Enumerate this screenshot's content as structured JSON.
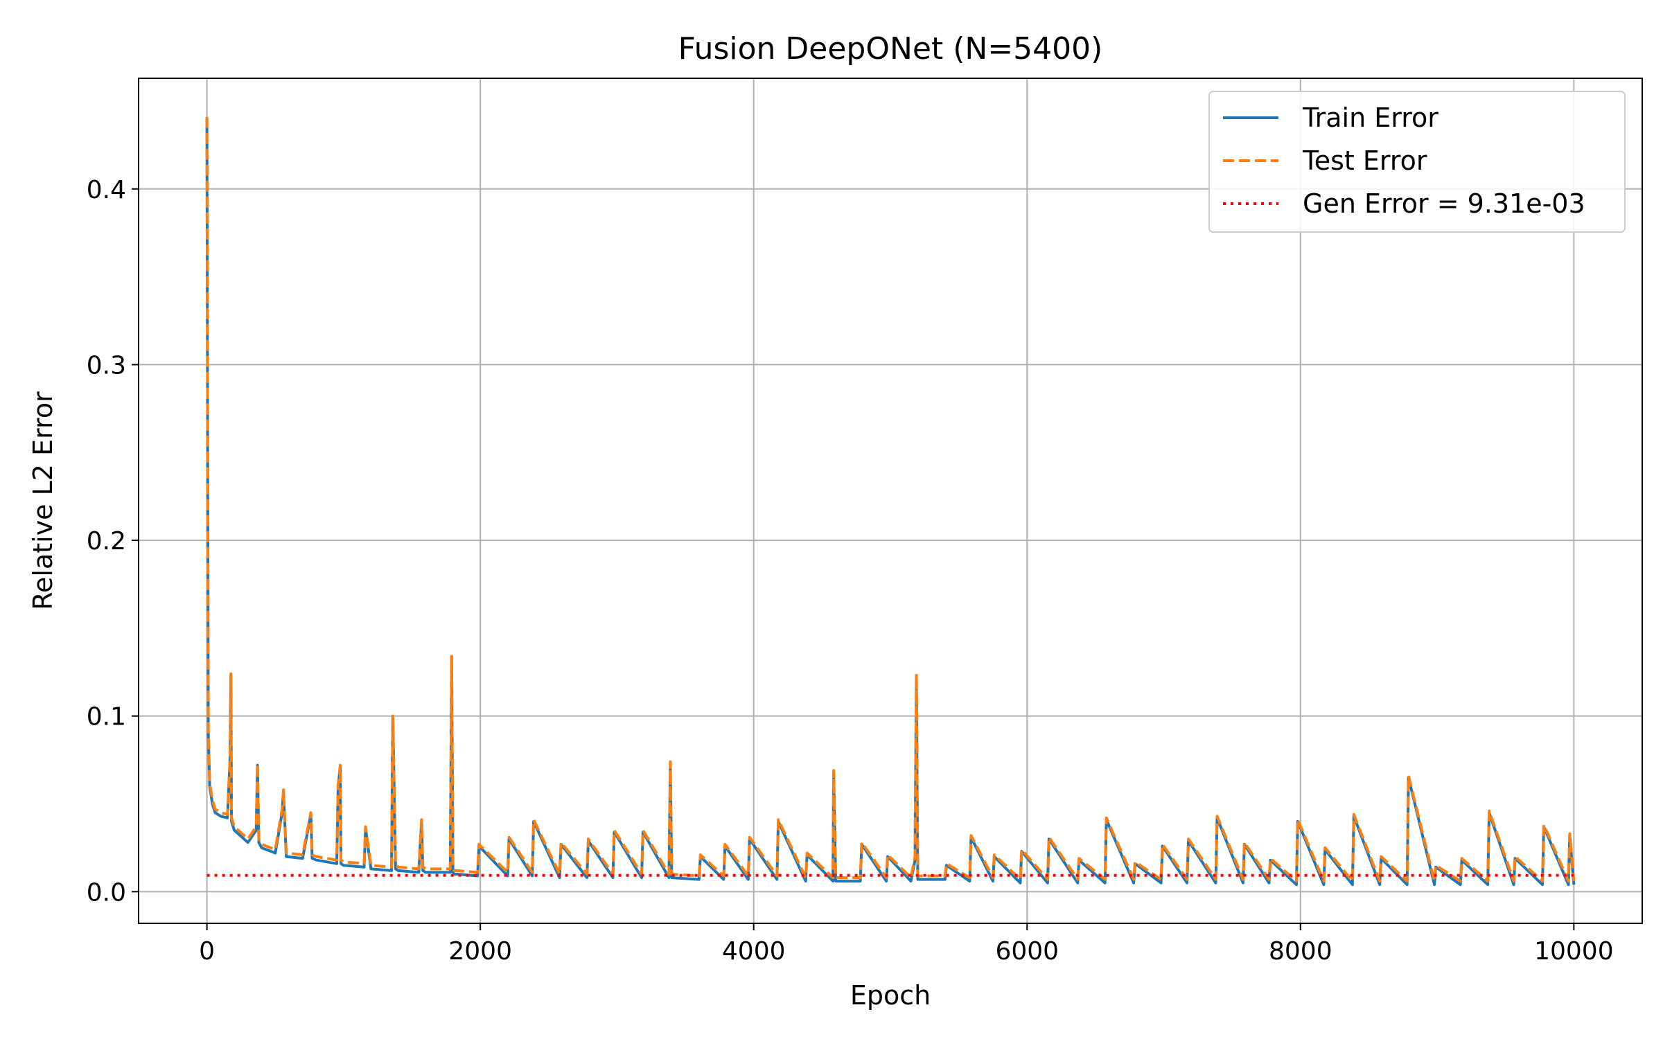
{
  "chart_data": {
    "type": "line",
    "title": "Fusion DeepONet (N=5400)",
    "xlabel": "Epoch",
    "ylabel": "Relative L2 Error",
    "xlim": [
      -500,
      10500
    ],
    "ylim": [
      -0.018,
      0.463
    ],
    "xticks": [
      0,
      2000,
      4000,
      6000,
      8000,
      10000
    ],
    "xtick_labels": [
      "0",
      "2000",
      "4000",
      "6000",
      "8000",
      "10000"
    ],
    "yticks": [
      0.0,
      0.1,
      0.2,
      0.3,
      0.4
    ],
    "ytick_labels": [
      "0.0",
      "0.1",
      "0.2",
      "0.3",
      "0.4"
    ],
    "grid": true,
    "legend_position": "top-right",
    "colors": {
      "train": "#1f77b4",
      "test": "#ff7f0e",
      "gen": "#ff0000",
      "grid": "#b0b0b0"
    },
    "series": [
      {
        "name": "Train Error",
        "style": "solid",
        "x": [
          0,
          10,
          20,
          40,
          60,
          100,
          150,
          170,
          175,
          180,
          200,
          300,
          360,
          370,
          380,
          400,
          500,
          550,
          560,
          580,
          700,
          760,
          770,
          800,
          950,
          960,
          975,
          980,
          1000,
          1150,
          1160,
          1200,
          1350,
          1360,
          1380,
          1400,
          1550,
          1570,
          1580,
          1600,
          1780,
          1790,
          1800,
          1810,
          1830,
          1980,
          1990,
          2200,
          2210,
          2380,
          2390,
          2580,
          2590,
          2780,
          2790,
          2970,
          2980,
          3180,
          3190,
          3380,
          3390,
          3400,
          3600,
          3610,
          3780,
          3790,
          3960,
          3970,
          4170,
          4180,
          4380,
          4390,
          4580,
          4585,
          4600,
          4780,
          4790,
          4970,
          4980,
          5150,
          5180,
          5190,
          5200,
          5400,
          5410,
          5580,
          5590,
          5750,
          5760,
          5950,
          5960,
          6150,
          6160,
          6370,
          6380,
          6570,
          6580,
          6780,
          6790,
          6980,
          6990,
          7170,
          7180,
          7380,
          7390,
          7580,
          7590,
          7770,
          7780,
          7970,
          7980,
          8170,
          8180,
          8380,
          8390,
          8580,
          8590,
          8780,
          8790,
          8980,
          8990,
          9170,
          9180,
          9370,
          9380,
          9560,
          9570,
          9770,
          9780,
          9960,
          9970,
          10000
        ],
        "y": [
          0.44,
          0.09,
          0.06,
          0.05,
          0.045,
          0.043,
          0.042,
          0.077,
          0.123,
          0.04,
          0.035,
          0.028,
          0.035,
          0.072,
          0.028,
          0.025,
          0.022,
          0.045,
          0.057,
          0.02,
          0.019,
          0.044,
          0.019,
          0.018,
          0.016,
          0.06,
          0.071,
          0.016,
          0.015,
          0.014,
          0.036,
          0.013,
          0.012,
          0.1,
          0.013,
          0.012,
          0.011,
          0.04,
          0.012,
          0.011,
          0.011,
          0.134,
          0.011,
          0.01,
          0.01,
          0.009,
          0.026,
          0.009,
          0.03,
          0.009,
          0.04,
          0.008,
          0.027,
          0.008,
          0.029,
          0.008,
          0.034,
          0.008,
          0.034,
          0.008,
          0.073,
          0.008,
          0.007,
          0.02,
          0.007,
          0.026,
          0.007,
          0.03,
          0.007,
          0.04,
          0.006,
          0.021,
          0.006,
          0.068,
          0.006,
          0.006,
          0.027,
          0.006,
          0.02,
          0.006,
          0.018,
          0.123,
          0.007,
          0.007,
          0.015,
          0.006,
          0.031,
          0.006,
          0.02,
          0.005,
          0.023,
          0.005,
          0.03,
          0.005,
          0.018,
          0.005,
          0.041,
          0.005,
          0.016,
          0.005,
          0.026,
          0.005,
          0.029,
          0.005,
          0.042,
          0.005,
          0.027,
          0.005,
          0.018,
          0.004,
          0.04,
          0.004,
          0.024,
          0.004,
          0.043,
          0.004,
          0.019,
          0.004,
          0.065,
          0.004,
          0.014,
          0.004,
          0.018,
          0.004,
          0.045,
          0.004,
          0.019,
          0.004,
          0.037,
          0.004,
          0.032,
          0.004
        ]
      },
      {
        "name": "Test Error",
        "style": "dashed",
        "x": [
          0,
          10,
          20,
          40,
          60,
          100,
          150,
          170,
          175,
          180,
          200,
          300,
          360,
          370,
          380,
          400,
          500,
          550,
          560,
          580,
          700,
          760,
          770,
          800,
          950,
          960,
          975,
          980,
          1000,
          1150,
          1160,
          1200,
          1350,
          1360,
          1380,
          1400,
          1550,
          1570,
          1580,
          1600,
          1780,
          1790,
          1800,
          1810,
          1830,
          1980,
          1990,
          2200,
          2210,
          2380,
          2390,
          2580,
          2590,
          2780,
          2790,
          2970,
          2980,
          3180,
          3190,
          3380,
          3390,
          3400,
          3600,
          3610,
          3780,
          3790,
          3960,
          3970,
          4170,
          4180,
          4380,
          4390,
          4580,
          4585,
          4600,
          4780,
          4790,
          4970,
          4980,
          5150,
          5180,
          5190,
          5200,
          5400,
          5410,
          5580,
          5590,
          5750,
          5760,
          5950,
          5960,
          6150,
          6160,
          6370,
          6380,
          6570,
          6580,
          6780,
          6790,
          6980,
          6990,
          7170,
          7180,
          7380,
          7390,
          7580,
          7590,
          7770,
          7780,
          7970,
          7980,
          8170,
          8180,
          8380,
          8390,
          8580,
          8590,
          8780,
          8790,
          8980,
          8990,
          9170,
          9180,
          9370,
          9380,
          9560,
          9570,
          9770,
          9780,
          9960,
          9970,
          10000
        ],
        "y": [
          0.441,
          0.092,
          0.062,
          0.052,
          0.047,
          0.045,
          0.044,
          0.078,
          0.124,
          0.042,
          0.037,
          0.03,
          0.037,
          0.073,
          0.03,
          0.027,
          0.024,
          0.047,
          0.058,
          0.022,
          0.021,
          0.045,
          0.021,
          0.02,
          0.018,
          0.061,
          0.072,
          0.018,
          0.017,
          0.016,
          0.037,
          0.015,
          0.014,
          0.1,
          0.015,
          0.014,
          0.013,
          0.041,
          0.014,
          0.013,
          0.013,
          0.134,
          0.013,
          0.012,
          0.012,
          0.011,
          0.027,
          0.011,
          0.031,
          0.011,
          0.041,
          0.01,
          0.028,
          0.01,
          0.03,
          0.01,
          0.035,
          0.01,
          0.035,
          0.01,
          0.074,
          0.01,
          0.009,
          0.021,
          0.009,
          0.027,
          0.009,
          0.031,
          0.009,
          0.041,
          0.008,
          0.022,
          0.008,
          0.069,
          0.008,
          0.008,
          0.028,
          0.008,
          0.021,
          0.008,
          0.02,
          0.124,
          0.009,
          0.009,
          0.016,
          0.008,
          0.032,
          0.008,
          0.021,
          0.007,
          0.024,
          0.007,
          0.031,
          0.007,
          0.019,
          0.007,
          0.042,
          0.007,
          0.017,
          0.007,
          0.027,
          0.007,
          0.03,
          0.007,
          0.043,
          0.007,
          0.028,
          0.007,
          0.019,
          0.006,
          0.041,
          0.006,
          0.025,
          0.006,
          0.044,
          0.006,
          0.02,
          0.006,
          0.066,
          0.006,
          0.015,
          0.006,
          0.019,
          0.006,
          0.046,
          0.006,
          0.02,
          0.006,
          0.038,
          0.006,
          0.033,
          0.006
        ]
      },
      {
        "name": "Gen Error = 9.31e-03",
        "style": "dotted",
        "x": [
          0,
          10000
        ],
        "y": [
          0.00931,
          0.00931
        ]
      }
    ]
  }
}
